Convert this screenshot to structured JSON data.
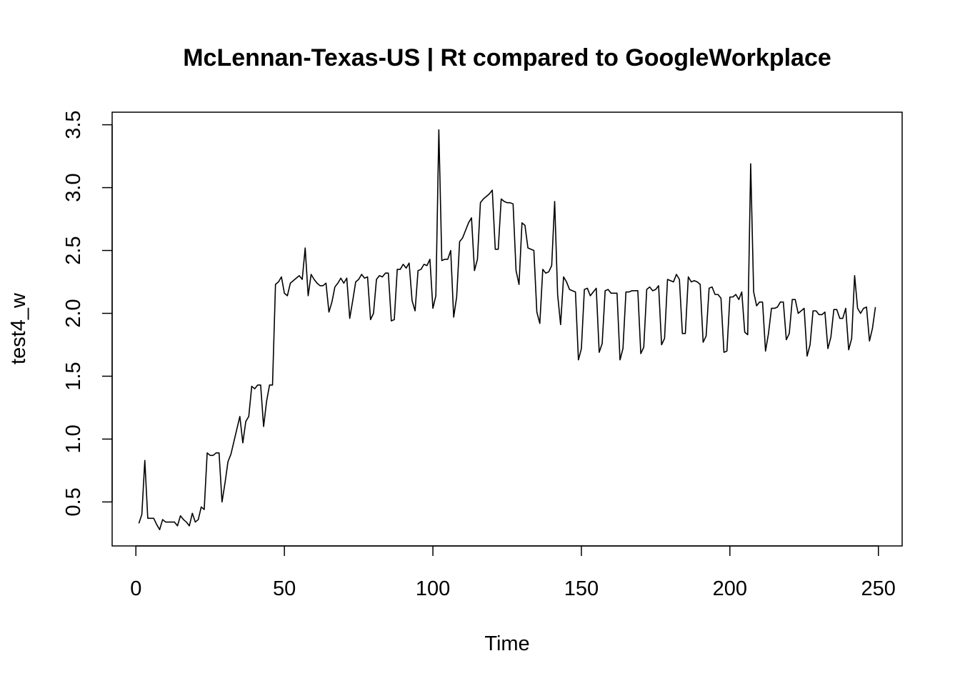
{
  "chart_data": {
    "type": "line",
    "title": "McLennan-Texas-US | Rt compared to GoogleWorkplace",
    "xlabel": "Time",
    "ylabel": "test4_w",
    "xlim": [
      -8,
      258
    ],
    "ylim": [
      0.15,
      3.6
    ],
    "xticks": [
      0,
      50,
      100,
      150,
      200,
      250
    ],
    "yticks": [
      0.5,
      1.0,
      1.5,
      2.0,
      2.5,
      3.0,
      3.5
    ],
    "xtick_labels": [
      "0",
      "50",
      "100",
      "150",
      "200",
      "250"
    ],
    "ytick_labels": [
      "0.5",
      "1.0",
      "1.5",
      "2.0",
      "2.5",
      "3.0",
      "3.5"
    ],
    "grid": false,
    "line_color": "#000000",
    "series": [
      {
        "x_start": 1,
        "values": [
          0.33,
          0.4,
          0.83,
          0.37,
          0.37,
          0.37,
          0.32,
          0.28,
          0.36,
          0.34,
          0.34,
          0.34,
          0.34,
          0.31,
          0.39,
          0.36,
          0.34,
          0.31,
          0.41,
          0.34,
          0.36,
          0.46,
          0.44,
          0.89,
          0.87,
          0.87,
          0.89,
          0.89,
          0.5,
          0.65,
          0.82,
          0.88,
          0.98,
          1.08,
          1.18,
          0.97,
          1.14,
          1.18,
          1.42,
          1.4,
          1.43,
          1.43,
          1.1,
          1.3,
          1.43,
          1.43,
          2.23,
          2.25,
          2.29,
          2.16,
          2.14,
          2.24,
          2.26,
          2.28,
          2.3,
          2.27,
          2.52,
          2.14,
          2.31,
          2.27,
          2.24,
          2.22,
          2.22,
          2.24,
          2.01,
          2.09,
          2.21,
          2.24,
          2.28,
          2.24,
          2.28,
          1.96,
          2.1,
          2.25,
          2.27,
          2.31,
          2.28,
          2.29,
          1.95,
          2.0,
          2.27,
          2.3,
          2.29,
          2.32,
          2.32,
          1.94,
          1.95,
          2.35,
          2.35,
          2.39,
          2.36,
          2.4,
          2.1,
          2.02,
          2.34,
          2.35,
          2.39,
          2.38,
          2.43,
          2.04,
          2.14,
          3.46,
          2.42,
          2.43,
          2.43,
          2.5,
          1.97,
          2.13,
          2.57,
          2.6,
          2.66,
          2.72,
          2.76,
          2.34,
          2.43,
          2.88,
          2.91,
          2.93,
          2.95,
          2.98,
          2.51,
          2.51,
          2.91,
          2.89,
          2.88,
          2.88,
          2.87,
          2.34,
          2.23,
          2.72,
          2.7,
          2.52,
          2.51,
          2.5,
          2.01,
          1.92,
          2.35,
          2.32,
          2.33,
          2.38,
          2.89,
          2.15,
          1.91,
          2.29,
          2.25,
          2.19,
          2.18,
          2.17,
          1.63,
          1.72,
          2.19,
          2.2,
          2.14,
          2.17,
          2.2,
          1.69,
          1.76,
          2.18,
          2.19,
          2.16,
          2.16,
          2.16,
          1.63,
          1.72,
          2.17,
          2.17,
          2.18,
          2.18,
          2.18,
          1.68,
          1.73,
          2.19,
          2.21,
          2.18,
          2.19,
          2.22,
          1.75,
          1.8,
          2.27,
          2.26,
          2.25,
          2.31,
          2.27,
          1.84,
          1.84,
          2.29,
          2.25,
          2.26,
          2.25,
          2.23,
          1.77,
          1.82,
          2.2,
          2.21,
          2.15,
          2.15,
          2.12,
          1.69,
          1.7,
          2.13,
          2.13,
          2.15,
          2.11,
          2.17,
          1.85,
          1.83,
          3.19,
          2.17,
          2.06,
          2.09,
          2.09,
          1.7,
          1.84,
          2.04,
          2.04,
          2.05,
          2.09,
          2.09,
          1.79,
          1.84,
          2.11,
          2.11,
          2.0,
          2.02,
          2.04,
          1.66,
          1.75,
          2.02,
          2.02,
          1.99,
          1.99,
          2.01,
          1.72,
          1.81,
          2.03,
          2.03,
          1.96,
          1.96,
          2.04,
          1.71,
          1.8,
          2.3,
          2.04,
          2.0,
          2.04,
          2.05,
          1.78,
          1.88,
          2.05
        ]
      }
    ]
  }
}
